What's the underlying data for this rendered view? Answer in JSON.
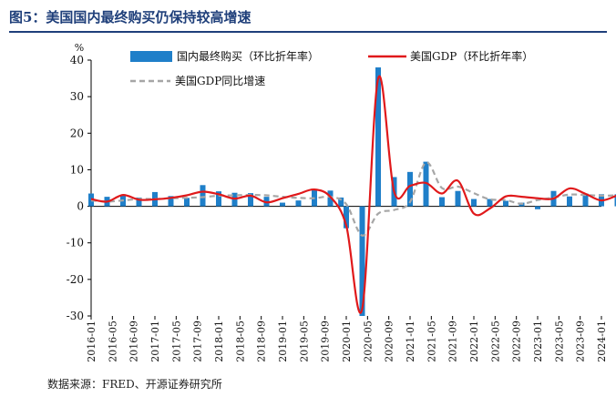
{
  "figure": {
    "title": "图5：美国国内最终购买仍保持较高增速",
    "source": "数据来源：FRED、开源证券研究所"
  },
  "colors": {
    "title": "#1f3f7a",
    "bar": "#1f7fc9",
    "line_red": "#e0191b",
    "line_gray": "#a6a6a6"
  },
  "chart_data": {
    "type": "bar",
    "title": "",
    "ylabel": "%",
    "xlabel": "",
    "ylim": [
      -30,
      40
    ],
    "yticks": [
      -30,
      -20,
      -10,
      0,
      10,
      20,
      30,
      40
    ],
    "grid": false,
    "legend_position": "top",
    "x": [
      "2016-01",
      "2016-03",
      "2016-05",
      "2016-07",
      "2016-09",
      "2016-11",
      "2017-01",
      "2017-03",
      "2017-05",
      "2017-07",
      "2017-09",
      "2017-11",
      "2018-01",
      "2018-03",
      "2018-05",
      "2018-07",
      "2018-09",
      "2018-11",
      "2019-01",
      "2019-03",
      "2019-05",
      "2019-07",
      "2019-09",
      "2019-11",
      "2020-01",
      "2020-03",
      "2020-05",
      "2020-07",
      "2020-09",
      "2020-11",
      "2021-01",
      "2021-03",
      "2021-05",
      "2021-07",
      "2021-09",
      "2021-11",
      "2022-01",
      "2022-03",
      "2022-05",
      "2022-07",
      "2022-09",
      "2022-11",
      "2023-01",
      "2023-03",
      "2023-05",
      "2023-07",
      "2023-09",
      "2023-11",
      "2024-01"
    ],
    "xtick_labels": [
      "2016-01",
      "2016-05",
      "2016-09",
      "2017-01",
      "2017-05",
      "2017-09",
      "2018-01",
      "2018-05",
      "2018-09",
      "2019-01",
      "2019-05",
      "2019-09",
      "2020-01",
      "2020-05",
      "2020-09",
      "2021-01",
      "2021-05",
      "2021-09",
      "2022-01",
      "2022-05",
      "2022-09",
      "2023-01",
      "2023-05",
      "2023-09",
      "2024-01"
    ],
    "series": [
      {
        "name": "国内最终购买（环比折年率）",
        "kind": "bar",
        "points": [
          [
            "2016-01",
            3.5
          ],
          [
            "2016-04",
            2.6
          ],
          [
            "2016-07",
            3.0
          ],
          [
            "2016-10",
            2.4
          ],
          [
            "2017-01",
            3.9
          ],
          [
            "2017-04",
            2.8
          ],
          [
            "2017-07",
            2.3
          ],
          [
            "2017-10",
            5.8
          ],
          [
            "2018-01",
            4.1
          ],
          [
            "2018-04",
            3.7
          ],
          [
            "2018-07",
            3.6
          ],
          [
            "2018-10",
            2.6
          ],
          [
            "2019-01",
            1.0
          ],
          [
            "2019-04",
            1.6
          ],
          [
            "2019-07",
            4.6
          ],
          [
            "2019-10",
            4.3
          ],
          [
            "2019-12",
            2.4
          ],
          [
            "2020-01",
            -6.0
          ],
          [
            "2020-04",
            -30.0
          ],
          [
            "2020-07",
            38.0
          ],
          [
            "2020-10",
            8.0
          ],
          [
            "2021-01",
            9.4
          ],
          [
            "2021-04",
            12.2
          ],
          [
            "2021-07",
            2.5
          ],
          [
            "2021-10",
            4.2
          ],
          [
            "2022-01",
            2.0
          ],
          [
            "2022-04",
            2.0
          ],
          [
            "2022-07",
            1.5
          ],
          [
            "2022-10",
            1.0
          ],
          [
            "2023-01",
            -0.8
          ],
          [
            "2023-04",
            4.2
          ],
          [
            "2023-07",
            2.7
          ],
          [
            "2023-10",
            3.5
          ],
          [
            "2024-01",
            3.3
          ],
          [
            "2024-04",
            3.3
          ]
        ]
      },
      {
        "name": "美国GDP（环比折年率）",
        "kind": "line",
        "points": [
          [
            "2016-01",
            2.0
          ],
          [
            "2016-04",
            1.3
          ],
          [
            "2016-07",
            3.1
          ],
          [
            "2016-10",
            1.8
          ],
          [
            "2017-01",
            1.9
          ],
          [
            "2017-04",
            2.3
          ],
          [
            "2017-07",
            3.0
          ],
          [
            "2017-10",
            4.0
          ],
          [
            "2018-01",
            3.3
          ],
          [
            "2018-04",
            2.1
          ],
          [
            "2018-07",
            2.9
          ],
          [
            "2018-10",
            1.1
          ],
          [
            "2019-01",
            2.2
          ],
          [
            "2019-04",
            3.4
          ],
          [
            "2019-07",
            4.6
          ],
          [
            "2019-10",
            2.6
          ],
          [
            "2020-01",
            -5.3
          ],
          [
            "2020-04",
            -28.0
          ],
          [
            "2020-07",
            35.0
          ],
          [
            "2020-10",
            4.0
          ],
          [
            "2021-01",
            5.6
          ],
          [
            "2021-04",
            6.4
          ],
          [
            "2021-07",
            3.5
          ],
          [
            "2021-10",
            7.0
          ],
          [
            "2022-01",
            -2.0
          ],
          [
            "2022-04",
            -0.6
          ],
          [
            "2022-07",
            2.7
          ],
          [
            "2022-10",
            2.6
          ],
          [
            "2023-01",
            2.2
          ],
          [
            "2023-04",
            2.1
          ],
          [
            "2023-07",
            4.9
          ],
          [
            "2023-10",
            3.4
          ],
          [
            "2024-01",
            1.6
          ],
          [
            "2024-04",
            3.0
          ]
        ]
      },
      {
        "name": "美国GDP同比增速",
        "kind": "dashed",
        "points": [
          [
            "2016-01",
            1.6
          ],
          [
            "2016-04",
            1.3
          ],
          [
            "2016-07",
            1.6
          ],
          [
            "2016-10",
            2.0
          ],
          [
            "2017-01",
            2.0
          ],
          [
            "2017-04",
            2.2
          ],
          [
            "2017-07",
            2.3
          ],
          [
            "2017-10",
            2.5
          ],
          [
            "2018-01",
            2.9
          ],
          [
            "2018-04",
            3.0
          ],
          [
            "2018-07",
            3.1
          ],
          [
            "2018-10",
            3.0
          ],
          [
            "2019-01",
            2.6
          ],
          [
            "2019-04",
            2.3
          ],
          [
            "2019-07",
            2.2
          ],
          [
            "2019-10",
            2.6
          ],
          [
            "2020-01",
            0.6
          ],
          [
            "2020-04",
            -8.0
          ],
          [
            "2020-07",
            -2.0
          ],
          [
            "2020-10",
            -1.0
          ],
          [
            "2021-01",
            1.2
          ],
          [
            "2021-04",
            12.0
          ],
          [
            "2021-07",
            5.0
          ],
          [
            "2021-10",
            5.4
          ],
          [
            "2022-01",
            3.6
          ],
          [
            "2022-04",
            1.9
          ],
          [
            "2022-07",
            1.7
          ],
          [
            "2022-10",
            0.7
          ],
          [
            "2023-01",
            1.7
          ],
          [
            "2023-04",
            2.4
          ],
          [
            "2023-07",
            3.2
          ],
          [
            "2023-10",
            3.1
          ],
          [
            "2024-01",
            2.9
          ],
          [
            "2024-04",
            3.0
          ]
        ]
      }
    ]
  }
}
